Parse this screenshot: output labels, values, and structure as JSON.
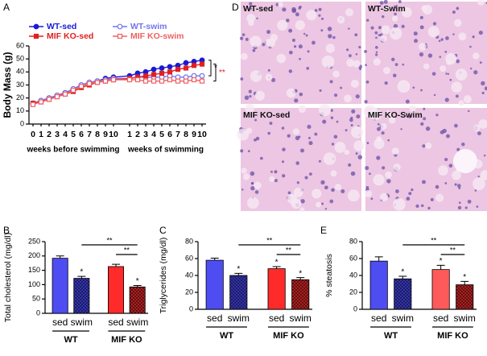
{
  "chart_data": [
    {
      "type": "line",
      "panel": "A",
      "ylabel": "Body Mass (g)",
      "categories": [
        "0",
        "1",
        "2",
        "3",
        "4",
        "5",
        "6",
        "7",
        "8",
        "9",
        "10",
        "1",
        "2",
        "3",
        "4",
        "5",
        "6",
        "7",
        "8",
        "9",
        "10"
      ],
      "groups": [
        {
          "name": "weeks before swimming",
          "span": [
            0,
            10
          ]
        },
        {
          "name": "weeks of swimming",
          "span": [
            11,
            20
          ]
        }
      ],
      "ylim": [
        0,
        60
      ],
      "yticks": [
        0,
        10,
        20,
        30,
        40,
        50,
        60
      ],
      "series": [
        {
          "name": "WT-sed",
          "color": "#1a1ad6",
          "marker": "circle",
          "filled": true,
          "values": [
            16,
            18,
            20,
            22,
            24,
            27,
            30,
            32,
            33,
            35,
            36,
            37,
            39,
            40,
            42,
            43,
            44,
            45,
            47,
            48,
            49
          ]
        },
        {
          "name": "WT-swim",
          "color": "#7474ee",
          "marker": "circle",
          "filled": false,
          "values": [
            16,
            18,
            20,
            22,
            24,
            27,
            30,
            32,
            33,
            34,
            35,
            35,
            36,
            36,
            36,
            36,
            37,
            36,
            36,
            37,
            37
          ]
        },
        {
          "name": "MIF KO-sed",
          "color": "#e02020",
          "marker": "square",
          "filled": true,
          "values": [
            16,
            17,
            19,
            21,
            23,
            25,
            28,
            30,
            32,
            33,
            34,
            35,
            36,
            37,
            38,
            39,
            40,
            42,
            43,
            45,
            46
          ]
        },
        {
          "name": "MIF KO-swim",
          "color": "#f06060",
          "marker": "square",
          "filled": false,
          "values": [
            15,
            17,
            19,
            21,
            23,
            26,
            29,
            31,
            32,
            33,
            34,
            34,
            34,
            33,
            33,
            33,
            34,
            33,
            33,
            34,
            33
          ]
        }
      ],
      "brackets": [
        {
          "series": [
            0,
            1
          ],
          "text": "*",
          "color": "#000000"
        },
        {
          "series": [
            2,
            3
          ],
          "text": "**",
          "color": "#e02020"
        }
      ]
    },
    {
      "type": "bar",
      "panel": "B",
      "ylabel": "Total cholesterol (mg/dl)",
      "categories": [
        "sed",
        "swim",
        "sed",
        "swim"
      ],
      "groups": [
        {
          "name": "WT",
          "span": [
            0,
            1
          ]
        },
        {
          "name": "MIF KO",
          "span": [
            2,
            3
          ]
        }
      ],
      "values": [
        192,
        122,
        163,
        92
      ],
      "errors": [
        8,
        7,
        8,
        5
      ],
      "colors": [
        "#4d4df2",
        "#3434c8",
        "#ff2a2a",
        "#c41c1c"
      ],
      "hatched": [
        false,
        true,
        false,
        true
      ],
      "ylim": [
        0,
        250
      ],
      "yticks": [
        0,
        50,
        100,
        150,
        200,
        250
      ],
      "stars": [
        {
          "bar": 1,
          "text": "*"
        },
        {
          "bar": 3,
          "text": "*"
        }
      ],
      "brackets": [
        {
          "span": [
            1,
            3
          ],
          "text": "**"
        },
        {
          "span": [
            2,
            3
          ],
          "text": "**"
        }
      ]
    },
    {
      "type": "bar",
      "panel": "C",
      "ylabel": "Triglycerides (mg/dl)",
      "categories": [
        "sed",
        "swim",
        "sed",
        "swim"
      ],
      "groups": [
        {
          "name": "WT",
          "span": [
            0,
            1
          ]
        },
        {
          "name": "MIF KO",
          "span": [
            2,
            3
          ]
        }
      ],
      "values": [
        58,
        40,
        48,
        35
      ],
      "errors": [
        2.5,
        2.5,
        2.5,
        2.5
      ],
      "colors": [
        "#4d4df2",
        "#3434c8",
        "#ff2a2a",
        "#c41c1c"
      ],
      "hatched": [
        false,
        true,
        false,
        true
      ],
      "ylim": [
        0,
        80
      ],
      "yticks": [
        0,
        20,
        40,
        60,
        80
      ],
      "stars": [
        {
          "bar": 1,
          "text": "*"
        },
        {
          "bar": 2,
          "text": "*"
        },
        {
          "bar": 3,
          "text": "*"
        }
      ],
      "brackets": [
        {
          "span": [
            1,
            3
          ],
          "text": "**"
        },
        {
          "span": [
            2,
            3
          ],
          "text": "**"
        }
      ]
    },
    {
      "type": "bar",
      "panel": "E",
      "ylabel": "% steatosis",
      "categories": [
        "sed",
        "swim",
        "sed",
        "swim"
      ],
      "groups": [
        {
          "name": "WT",
          "span": [
            0,
            1
          ]
        },
        {
          "name": "MIF KO",
          "span": [
            2,
            3
          ]
        }
      ],
      "values": [
        57,
        36,
        47,
        29
      ],
      "errors": [
        5,
        3,
        5,
        4
      ],
      "colors": [
        "#4d4df2",
        "#3434c8",
        "#ff5a5a",
        "#c41c1c"
      ],
      "hatched": [
        false,
        true,
        false,
        true
      ],
      "ylim": [
        0,
        80
      ],
      "yticks": [
        0,
        20,
        40,
        60,
        80
      ],
      "stars": [
        {
          "bar": 1,
          "text": "*"
        },
        {
          "bar": 2,
          "text": "*"
        },
        {
          "bar": 3,
          "text": "*"
        }
      ],
      "brackets": [
        {
          "span": [
            1,
            3
          ],
          "text": "**"
        },
        {
          "span": [
            2,
            3
          ],
          "text": "**"
        }
      ]
    }
  ],
  "images": {
    "panel": "D",
    "labels": [
      "WT-sed",
      "WT-Swim",
      "MIF KO-sed",
      "MIF KO-Swim"
    ]
  }
}
